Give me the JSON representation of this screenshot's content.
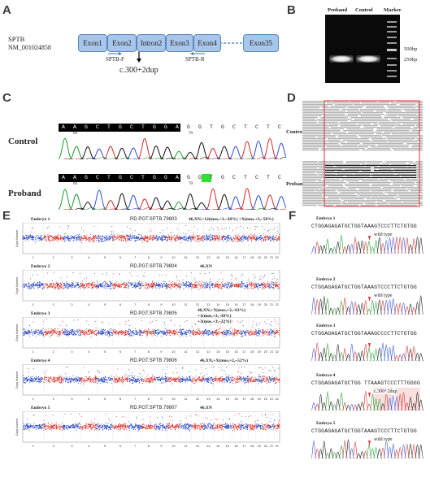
{
  "panels": {
    "a": "A",
    "b": "B",
    "c": "C",
    "d": "D",
    "e": "E",
    "f": "F"
  },
  "panel_a": {
    "gene": "SPTB",
    "accession": "NM_001024858",
    "segments": [
      "Exon1",
      "Exon2",
      "Intron2",
      "Exon3",
      "Exon4",
      "Exon35"
    ],
    "primer_f": "SPTB-F",
    "primer_r": "SPTB-R",
    "variant": "c.300+2dup"
  },
  "panel_b": {
    "lanes": [
      "Proband",
      "Control",
      "Marker"
    ],
    "sizes": [
      "500bp",
      "250bp"
    ]
  },
  "panel_c": {
    "rows": [
      "Control",
      "Proband"
    ],
    "control_bases": [
      "A",
      "A",
      "G",
      "C",
      "T",
      "G",
      "C",
      "T",
      "G",
      "G",
      "A",
      "G",
      "G",
      "T",
      "G",
      "C",
      "T",
      "C",
      "T",
      "C"
    ],
    "proband_bases": [
      "A",
      "A",
      "G",
      "C",
      "T",
      "G",
      "C",
      "T",
      "G",
      "G",
      "A",
      "G",
      "G",
      "T",
      "G",
      "C",
      "T",
      "C",
      "T",
      "C"
    ],
    "pos_left": "60",
    "pos_right": "70"
  },
  "panel_d": {
    "rows": [
      "Control",
      "Proband"
    ]
  },
  "panel_e": {
    "y_label": "Copy Number",
    "chromosomes": [
      "1",
      "2",
      "3",
      "4",
      "5",
      "6",
      "7",
      "8",
      "9",
      "10",
      "11",
      "12",
      "13",
      "14",
      "15",
      "16",
      "17",
      "18",
      "19",
      "20",
      "21",
      "22"
    ],
    "embryos": [
      {
        "name": "Embryo 1",
        "id": "RD.PGT.SPTB.79803",
        "karyotype": [
          "46,XN,+12(mos,+3,~28%) +X(mos,+3,~50%)"
        ]
      },
      {
        "name": "Embryo 2",
        "id": "RD.PGT.SPTB.79804",
        "karyotype": [
          "46,XN"
        ]
      },
      {
        "name": "Embryo 3",
        "id": "RD.PGT.SPTB.79805",
        "karyotype": [
          "46,XN,+X(mos,+2,~63%)",
          "+1(mos,+3,~30%)",
          "+3(mos,+3,~32%)"
        ]
      },
      {
        "name": "Embryo 4",
        "id": "RD.PGT.SPTB.79806",
        "karyotype": [
          "46,XN,+X(mos,+2,~52%)"
        ]
      },
      {
        "name": "Embryo 5",
        "id": "RD.PGT.SPTB.79807",
        "karyotype": [
          "46,XN"
        ]
      }
    ]
  },
  "panel_f": {
    "embryos": [
      {
        "name": "Embryo 1",
        "seq": "CTGGAGAGATGCTGGTAAAGTCCCTTCTGTGG",
        "call": "wild type"
      },
      {
        "name": "Embryo 2",
        "seq": "CTGGAGAGATGCTGGTAAAGTCCCTTCTGTGG",
        "call": "wild type"
      },
      {
        "name": "Embryo 3",
        "seq": "CTGGAGAGATGCTGGTAAAGCCCCTTCTGTGG",
        "call": ""
      },
      {
        "name": "Embryo 4",
        "seq": "CTGGAGAGATGCTGG TTAAAGTCCCTTTGGGG",
        "call": "c.300+2dup"
      },
      {
        "name": "Embryo 5",
        "seq": "CTGGAGAGATGCTGGTAAAGTCCCTTCTGTGG",
        "call": "wild type"
      }
    ]
  },
  "colors": {
    "exon": "#a8c6ea",
    "red_frame": "#d9302c",
    "cnv_blue": "#1f3fbf",
    "cnv_red": "#d8271f",
    "trace_green": "#1d9a2f",
    "trace_blue": "#2f4fd0",
    "trace_red": "#d22a2a",
    "trace_black": "#111111",
    "highlight": "#2fe02f"
  }
}
